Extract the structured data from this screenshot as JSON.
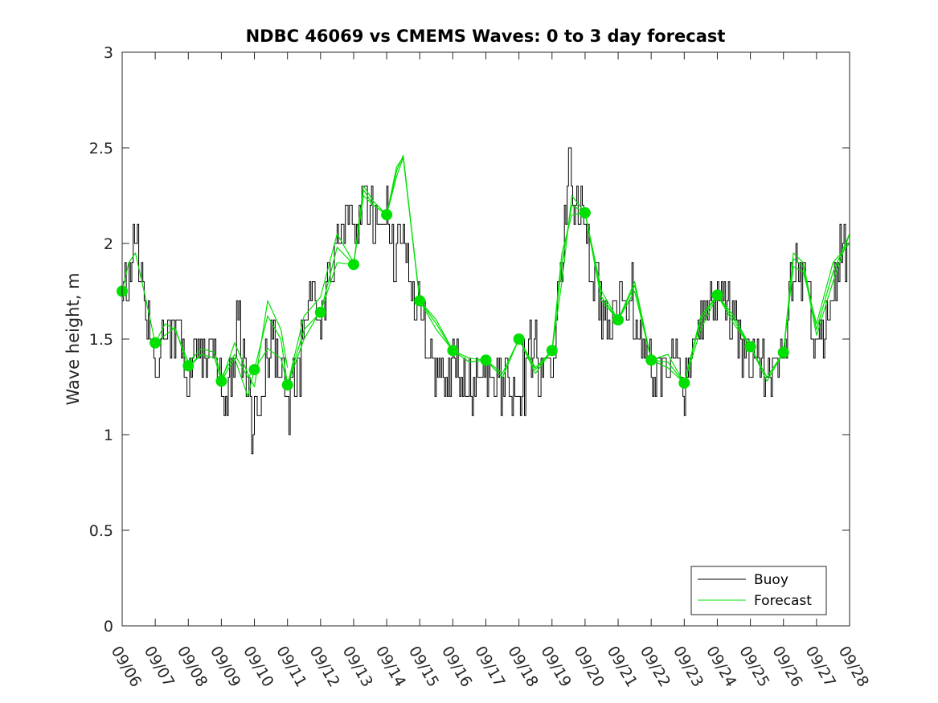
{
  "chart_data": {
    "type": "line",
    "title": "NDBC 46069 vs CMEMS Waves: 0 to 3 day forecast",
    "xlabel": "",
    "ylabel": "Wave height, m",
    "xlim": [
      0,
      22
    ],
    "ylim": [
      0,
      3
    ],
    "x_ticks": [
      0,
      1,
      2,
      3,
      4,
      5,
      6,
      7,
      8,
      9,
      10,
      11,
      12,
      13,
      14,
      15,
      16,
      17,
      18,
      19,
      20,
      21,
      22
    ],
    "x_tick_labels": [
      "09/06",
      "09/07",
      "09/08",
      "09/09",
      "09/10",
      "09/11",
      "09/12",
      "09/13",
      "09/14",
      "09/15",
      "09/16",
      "09/17",
      "09/18",
      "09/19",
      "09/20",
      "09/21",
      "09/22",
      "09/23",
      "09/24",
      "09/25",
      "09/26",
      "09/27",
      "09/28"
    ],
    "y_ticks": [
      0,
      0.5,
      1,
      1.5,
      2,
      2.5,
      3
    ],
    "y_tick_labels": [
      "0",
      "0.5",
      "1",
      "1.5",
      "2",
      "2.5",
      "3"
    ],
    "colors": {
      "buoy": "#000000",
      "forecast": "#00e000",
      "axes": "#262626"
    },
    "legend": {
      "position": "bottom-right",
      "entries": [
        {
          "name": "Buoy",
          "color": "#000000"
        },
        {
          "name": "Forecast",
          "color": "#00e000"
        }
      ]
    },
    "buoy_trend": {
      "x": [
        0,
        0.2,
        0.4,
        0.6,
        0.8,
        1,
        1.3,
        1.5,
        1.8,
        2,
        2.3,
        2.6,
        2.9,
        3,
        3.3,
        3.5,
        3.7,
        3.9,
        4,
        4.2,
        4.5,
        4.8,
        5,
        5.2,
        5.5,
        5.8,
        6,
        6.3,
        6.6,
        6.9,
        7,
        7.3,
        7.5,
        7.7,
        8,
        8.2,
        8.5,
        8.8,
        9,
        9.3,
        9.6,
        9.9,
        10,
        10.3,
        10.6,
        11,
        11.4,
        11.7,
        12,
        12.3,
        12.7,
        13,
        13.2,
        13.4,
        13.55,
        13.7,
        13.9,
        14,
        14.2,
        14.5,
        14.8,
        15,
        15.3,
        15.6,
        16,
        16.3,
        16.7,
        17,
        17.3,
        17.6,
        18,
        18.3,
        18.6,
        19,
        19.3,
        19.6,
        20,
        20.2,
        20.4,
        20.6,
        20.9,
        21.2,
        21.5,
        21.8,
        22
      ],
      "y": [
        1.75,
        1.85,
        2.05,
        1.85,
        1.55,
        1.35,
        1.45,
        1.55,
        1.5,
        1.3,
        1.4,
        1.45,
        1.4,
        1.2,
        1.35,
        1.6,
        1.3,
        1.05,
        1.1,
        1.25,
        1.45,
        1.4,
        1.25,
        1.3,
        1.55,
        1.75,
        1.65,
        1.9,
        2.05,
        2.1,
        2.0,
        2.3,
        2.2,
        2.1,
        2.15,
        1.9,
        2.0,
        1.75,
        1.65,
        1.45,
        1.3,
        1.25,
        1.35,
        1.3,
        1.25,
        1.35,
        1.3,
        1.25,
        1.25,
        1.45,
        1.3,
        1.4,
        1.75,
        2.1,
        2.45,
        2.2,
        2.25,
        2.05,
        1.8,
        1.65,
        1.55,
        1.6,
        1.75,
        1.55,
        1.3,
        1.3,
        1.4,
        1.25,
        1.45,
        1.6,
        1.75,
        1.7,
        1.5,
        1.4,
        1.35,
        1.25,
        1.4,
        1.75,
        1.95,
        1.85,
        1.55,
        1.5,
        1.8,
        1.95,
        2.1
      ]
    },
    "forecast_runs": [
      {
        "x": [
          0,
          0.2,
          0.4,
          0.7,
          1,
          1.3,
          1.6,
          2,
          2.4,
          2.8,
          3
        ],
        "y": [
          1.75,
          1.9,
          1.95,
          1.72,
          1.48,
          1.52,
          1.56,
          1.35,
          1.42,
          1.4,
          1.28
        ]
      },
      {
        "x": [
          1,
          1.3,
          1.6,
          2,
          2.4,
          2.8,
          3,
          3.4,
          3.8,
          4
        ],
        "y": [
          1.48,
          1.58,
          1.55,
          1.38,
          1.45,
          1.43,
          1.3,
          1.42,
          1.3,
          1.34
        ]
      },
      {
        "x": [
          2,
          2.4,
          2.8,
          3,
          3.4,
          3.8,
          4,
          4.4,
          4.8,
          5
        ],
        "y": [
          1.36,
          1.42,
          1.4,
          1.28,
          1.48,
          1.32,
          1.25,
          1.7,
          1.55,
          1.35
        ]
      },
      {
        "x": [
          3,
          3.4,
          3.8,
          4,
          4.4,
          4.8,
          5,
          5.5,
          6
        ],
        "y": [
          1.28,
          1.4,
          1.2,
          1.34,
          1.45,
          1.4,
          1.26,
          1.5,
          1.65
        ]
      },
      {
        "x": [
          4,
          4.4,
          4.8,
          5,
          5.5,
          6,
          6.5,
          7
        ],
        "y": [
          1.34,
          1.62,
          1.5,
          1.26,
          1.62,
          1.72,
          2.05,
          1.9
        ]
      },
      {
        "x": [
          5,
          5.5,
          6,
          6.5,
          7,
          7.3,
          7.6,
          8
        ],
        "y": [
          1.26,
          1.55,
          1.64,
          1.9,
          1.89,
          2.28,
          2.2,
          2.15
        ]
      },
      {
        "x": [
          6,
          6.5,
          7,
          7.3,
          7.6,
          8,
          8.3,
          8.5,
          9
        ],
        "y": [
          1.64,
          1.98,
          1.89,
          2.3,
          2.22,
          2.15,
          2.35,
          2.45,
          1.7
        ]
      },
      {
        "x": [
          7,
          7.3,
          7.6,
          8,
          8.3,
          8.5,
          8.8,
          9,
          9.5,
          10
        ],
        "y": [
          1.89,
          2.25,
          2.2,
          2.15,
          2.38,
          2.46,
          2.0,
          1.7,
          1.6,
          1.44
        ]
      },
      {
        "x": [
          8,
          8.3,
          8.5,
          8.8,
          9,
          9.5,
          10,
          10.5,
          11
        ],
        "y": [
          2.15,
          2.4,
          2.45,
          2.0,
          1.7,
          1.58,
          1.44,
          1.38,
          1.39
        ]
      },
      {
        "x": [
          9,
          9.5,
          10,
          10.5,
          11,
          11.5,
          12
        ],
        "y": [
          1.7,
          1.55,
          1.44,
          1.4,
          1.39,
          1.3,
          1.5
        ]
      },
      {
        "x": [
          10,
          10.5,
          11,
          11.5,
          12,
          12.5,
          13
        ],
        "y": [
          1.44,
          1.38,
          1.39,
          1.32,
          1.5,
          1.35,
          1.44
        ]
      },
      {
        "x": [
          11,
          11.5,
          12,
          12.5,
          13,
          13.3,
          13.6,
          14
        ],
        "y": [
          1.39,
          1.3,
          1.5,
          1.34,
          1.44,
          1.8,
          2.25,
          2.16
        ]
      },
      {
        "x": [
          12,
          12.5,
          13,
          13.3,
          13.6,
          14,
          14.5,
          15
        ],
        "y": [
          1.5,
          1.32,
          1.44,
          1.9,
          2.2,
          2.16,
          1.75,
          1.6
        ]
      },
      {
        "x": [
          13,
          13.3,
          13.6,
          14,
          14.5,
          15,
          15.5,
          16
        ],
        "y": [
          1.44,
          1.95,
          2.15,
          2.16,
          1.7,
          1.6,
          1.8,
          1.39
        ]
      },
      {
        "x": [
          14,
          14.5,
          15,
          15.5,
          16,
          16.5,
          17
        ],
        "y": [
          2.16,
          1.72,
          1.6,
          1.78,
          1.39,
          1.42,
          1.27
        ]
      },
      {
        "x": [
          15,
          15.5,
          16,
          16.5,
          17,
          17.5,
          18
        ],
        "y": [
          1.6,
          1.75,
          1.39,
          1.38,
          1.27,
          1.62,
          1.73
        ]
      },
      {
        "x": [
          16,
          16.5,
          17,
          17.5,
          18,
          18.5,
          19
        ],
        "y": [
          1.39,
          1.35,
          1.27,
          1.6,
          1.73,
          1.58,
          1.46
        ]
      },
      {
        "x": [
          17,
          17.5,
          18,
          18.5,
          19,
          19.5,
          20
        ],
        "y": [
          1.27,
          1.55,
          1.73,
          1.6,
          1.46,
          1.3,
          1.43
        ]
      },
      {
        "x": [
          18,
          18.5,
          19,
          19.5,
          20,
          20.3,
          20.6,
          21,
          21.5,
          22
        ],
        "y": [
          1.73,
          1.62,
          1.46,
          1.28,
          1.43,
          1.95,
          1.9,
          1.55,
          1.85,
          2.05
        ]
      },
      {
        "x": [
          19,
          19.5,
          20,
          20.3,
          20.6,
          21,
          21.5,
          22
        ],
        "y": [
          1.46,
          1.3,
          1.43,
          1.88,
          1.85,
          1.58,
          1.9,
          2.0
        ]
      },
      {
        "x": [
          20,
          20.3,
          20.6,
          21,
          21.5,
          22
        ],
        "y": [
          1.43,
          1.92,
          1.88,
          1.52,
          1.8,
          2.05
        ]
      }
    ],
    "forecast_markers": {
      "x": [
        0,
        1,
        2,
        3,
        4,
        5,
        6,
        7,
        8,
        9,
        10,
        11,
        12,
        13,
        14,
        15,
        16,
        17,
        18,
        19,
        20
      ],
      "y": [
        1.75,
        1.48,
        1.36,
        1.28,
        1.34,
        1.26,
        1.64,
        1.89,
        2.15,
        1.7,
        1.44,
        1.39,
        1.5,
        1.44,
        2.16,
        1.6,
        1.39,
        1.27,
        1.73,
        1.46,
        1.43
      ]
    }
  }
}
